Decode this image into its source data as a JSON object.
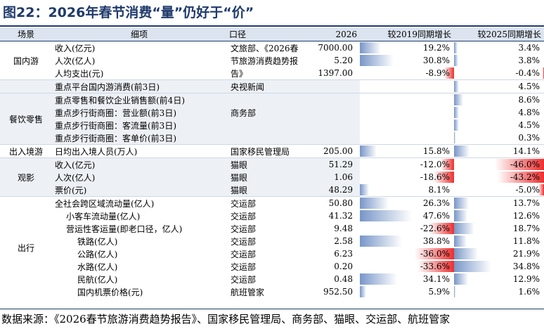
{
  "title": "图22：2026年春节消费“量”仍好于“价”",
  "headers": {
    "scene": "场景",
    "item": "细项",
    "source": "口径",
    "value": "2026",
    "g2019": "较2019同期增长",
    "g2025": "较2025同期增长"
  },
  "colors": {
    "positive": "#7896c8",
    "negative": "#ee2e2e",
    "title": "#1f3a6b",
    "header_bg": "#dce4ef",
    "group_bg": "#edf1f6"
  },
  "scales": {
    "g2019_max_abs": 47.6,
    "g2025_max_abs": 46.0
  },
  "groups": [
    {
      "scene": "国内游",
      "shaded": false,
      "span": 3
    },
    {
      "scene": "",
      "shaded": true,
      "span": 1
    },
    {
      "scene": "餐饮零售",
      "shaded": true,
      "span": 4
    },
    {
      "scene": "出入境游",
      "shaded": false,
      "span": 1
    },
    {
      "scene": "观影",
      "shaded": true,
      "span": 3
    },
    {
      "scene": "出行",
      "shaded": false,
      "span": 8
    }
  ],
  "rows": [
    {
      "item": "收入(亿元)",
      "indent": 0,
      "source": "文旅部、《2026春",
      "value": "7000.00",
      "g2019": "19.2%",
      "g2019_num": 19.2,
      "g2025": "3.4%",
      "g2025_num": 3.4
    },
    {
      "item": "人次(亿人)",
      "indent": 0,
      "source": "节旅游消费趋势报",
      "value": "5.20",
      "g2019": "30.8%",
      "g2019_num": 30.8,
      "g2025": "3.8%",
      "g2025_num": 3.8
    },
    {
      "item": "人均支出(元)",
      "indent": 0,
      "source": "告》",
      "value": "1397.00",
      "g2019": "-8.9%",
      "g2019_num": -8.9,
      "g2025": "-0.4%",
      "g2025_num": -0.4
    },
    {
      "item": "重点平台国内游消费(前3日)",
      "indent": 0,
      "source": "央视新闻",
      "value": "",
      "g2019": "",
      "g2019_num": null,
      "g2025": "4.5%",
      "g2025_num": 4.5
    },
    {
      "item": "重点零售和餐饮企业销售额(前4日)",
      "indent": 0,
      "source": "",
      "value": "",
      "g2019": "",
      "g2019_num": null,
      "g2025": "8.6%",
      "g2025_num": 8.6
    },
    {
      "item": "重点步行街商圈：营业额(前3日)",
      "indent": 0,
      "source": "商务部",
      "value": "",
      "g2019": "",
      "g2019_num": null,
      "g2025": "4.8%",
      "g2025_num": 4.8
    },
    {
      "item": "重点步行街商圈：客流量(前3日)",
      "indent": 0,
      "source": "",
      "value": "",
      "g2019": "",
      "g2019_num": null,
      "g2025": "4.5%",
      "g2025_num": 4.5
    },
    {
      "item": "重点步行街商圈：客单价(前3日)",
      "indent": 0,
      "source": "",
      "value": "",
      "g2019": "",
      "g2019_num": null,
      "g2025": "0.3%",
      "g2025_num": 0.3
    },
    {
      "item": "日均出入境人员(万人)",
      "indent": 0,
      "source": "国家移民管理局",
      "value": "205.00",
      "g2019": "15.8%",
      "g2019_num": 15.8,
      "g2025": "14.1%",
      "g2025_num": 14.1
    },
    {
      "item": "收入(亿元)",
      "indent": 0,
      "source": "猫眼",
      "value": "51.29",
      "g2019": "-12.0%",
      "g2019_num": -12.0,
      "g2025": "-46.0%",
      "g2025_num": -46.0
    },
    {
      "item": "人次(亿人)",
      "indent": 0,
      "source": "猫眼",
      "value": "1.06",
      "g2019": "-18.6%",
      "g2019_num": -18.6,
      "g2025": "-43.2%",
      "g2025_num": -43.2
    },
    {
      "item": "票价(元)",
      "indent": 0,
      "source": "猫眼",
      "value": "48.29",
      "g2019": "8.1%",
      "g2019_num": 8.1,
      "g2025": "-5.0%",
      "g2025_num": -5.0
    },
    {
      "item": "全社会跨区域流动量(亿人)",
      "indent": 0,
      "source": "交运部",
      "value": "50.80",
      "g2019": "26.3%",
      "g2019_num": 26.3,
      "g2025": "13.7%",
      "g2025_num": 13.7
    },
    {
      "item": "小客车流动量(亿人)",
      "indent": 2,
      "source": "交运部",
      "value": "41.32",
      "g2019": "47.6%",
      "g2019_num": 47.6,
      "g2025": "12.6%",
      "g2025_num": 12.6
    },
    {
      "item": "营运性客运量(即老口径，亿人)",
      "indent": 2,
      "source": "交运部",
      "value": "9.48",
      "g2019": "-22.6%",
      "g2019_num": -22.6,
      "g2025": "18.7%",
      "g2025_num": 18.7
    },
    {
      "item": "铁路(亿人)",
      "indent": 4,
      "source": "交运部",
      "value": "2.58",
      "g2019": "38.8%",
      "g2019_num": 38.8,
      "g2025": "11.8%",
      "g2025_num": 11.8
    },
    {
      "item": "公路(亿人)",
      "indent": 4,
      "source": "交运部",
      "value": "6.23",
      "g2019": "-36.0%",
      "g2019_num": -36.0,
      "g2025": "21.9%",
      "g2025_num": 21.9
    },
    {
      "item": "水路(亿人)",
      "indent": 4,
      "source": "交运部",
      "value": "0.20",
      "g2019": "-33.6%",
      "g2019_num": -33.6,
      "g2025": "34.8%",
      "g2025_num": 34.8
    },
    {
      "item": "民航(亿人)",
      "indent": 4,
      "source": "交运部",
      "value": "0.48",
      "g2019": "34.1%",
      "g2019_num": 34.1,
      "g2025": "12.9%",
      "g2025_num": 12.9
    },
    {
      "item": "国内机票价格(元)",
      "indent": 4,
      "source": "航班管家",
      "value": "952.50",
      "g2019": "5.9%",
      "g2019_num": 5.9,
      "g2025": "1.6%",
      "g2025_num": 1.6
    }
  ],
  "source_note": "数据来源：《2026春节旅游消费趋势报告》、国家移民管理局、商务部、猫眼、交运部、航班管家"
}
